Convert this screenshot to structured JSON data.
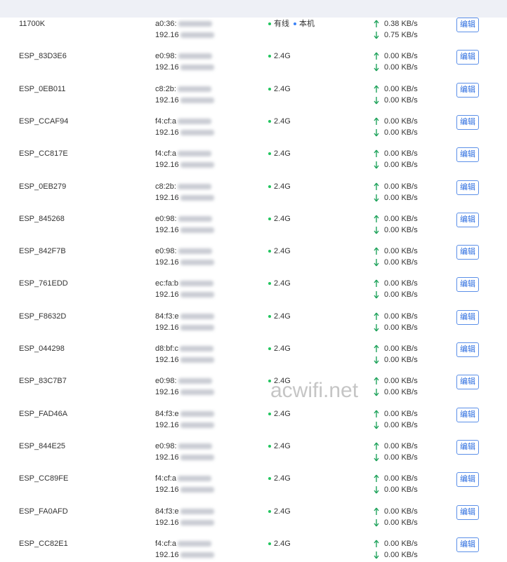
{
  "edit_button": "编辑",
  "watermark": "acwifi.net",
  "rows": [
    {
      "name": "11700K",
      "mac": "a0:36:",
      "ip": "192.16",
      "connection": [
        "有线",
        "本机"
      ],
      "up": "0.38 KB/s",
      "down": "0.75 KB/s"
    },
    {
      "name": "ESP_83D3E6",
      "mac": "e0:98:",
      "ip": "192.16",
      "connection": [
        "2.4G"
      ],
      "up": "0.00 KB/s",
      "down": "0.00 KB/s"
    },
    {
      "name": "ESP_0EB011",
      "mac": "c8:2b:",
      "ip": "192.16",
      "connection": [
        "2.4G"
      ],
      "up": "0.00 KB/s",
      "down": "0.00 KB/s"
    },
    {
      "name": "ESP_CCAF94",
      "mac": "f4:cf:a",
      "ip": "192.16",
      "connection": [
        "2.4G"
      ],
      "up": "0.00 KB/s",
      "down": "0.00 KB/s"
    },
    {
      "name": "ESP_CC817E",
      "mac": "f4:cf:a",
      "ip": "192.16",
      "connection": [
        "2.4G"
      ],
      "up": "0.00 KB/s",
      "down": "0.00 KB/s"
    },
    {
      "name": "ESP_0EB279",
      "mac": "c8:2b:",
      "ip": "192.16",
      "connection": [
        "2.4G"
      ],
      "up": "0.00 KB/s",
      "down": "0.00 KB/s"
    },
    {
      "name": "ESP_845268",
      "mac": "e0:98:",
      "ip": "192.16",
      "connection": [
        "2.4G"
      ],
      "up": "0.00 KB/s",
      "down": "0.00 KB/s"
    },
    {
      "name": "ESP_842F7B",
      "mac": "e0:98:",
      "ip": "192.16",
      "connection": [
        "2.4G"
      ],
      "up": "0.00 KB/s",
      "down": "0.00 KB/s"
    },
    {
      "name": "ESP_761EDD",
      "mac": "ec:fa:b",
      "ip": "192.16",
      "connection": [
        "2.4G"
      ],
      "up": "0.00 KB/s",
      "down": "0.00 KB/s"
    },
    {
      "name": "ESP_F8632D",
      "mac": "84:f3:e",
      "ip": "192.16",
      "connection": [
        "2.4G"
      ],
      "up": "0.00 KB/s",
      "down": "0.00 KB/s"
    },
    {
      "name": "ESP_044298",
      "mac": "d8:bf:c",
      "ip": "192.16",
      "connection": [
        "2.4G"
      ],
      "up": "0.00 KB/s",
      "down": "0.00 KB/s"
    },
    {
      "name": "ESP_83C7B7",
      "mac": "e0:98:",
      "ip": "192.16",
      "connection": [
        "2.4G"
      ],
      "up": "0.00 KB/s",
      "down": "0.00 KB/s"
    },
    {
      "name": "ESP_FAD46A",
      "mac": "84:f3:e",
      "ip": "192.16",
      "connection": [
        "2.4G"
      ],
      "up": "0.00 KB/s",
      "down": "0.00 KB/s"
    },
    {
      "name": "ESP_844E25",
      "mac": "e0:98:",
      "ip": "192.16",
      "connection": [
        "2.4G"
      ],
      "up": "0.00 KB/s",
      "down": "0.00 KB/s"
    },
    {
      "name": "ESP_CC89FE",
      "mac": "f4:cf:a",
      "ip": "192.16",
      "connection": [
        "2.4G"
      ],
      "up": "0.00 KB/s",
      "down": "0.00 KB/s"
    },
    {
      "name": "ESP_FA0AFD",
      "mac": "84:f3:e",
      "ip": "192.16",
      "connection": [
        "2.4G"
      ],
      "up": "0.00 KB/s",
      "down": "0.00 KB/s"
    },
    {
      "name": "ESP_CC82E1",
      "mac": "f4:cf:a",
      "ip": "192.16",
      "connection": [
        "2.4G"
      ],
      "up": "0.00 KB/s",
      "down": "0.00 KB/s"
    }
  ]
}
